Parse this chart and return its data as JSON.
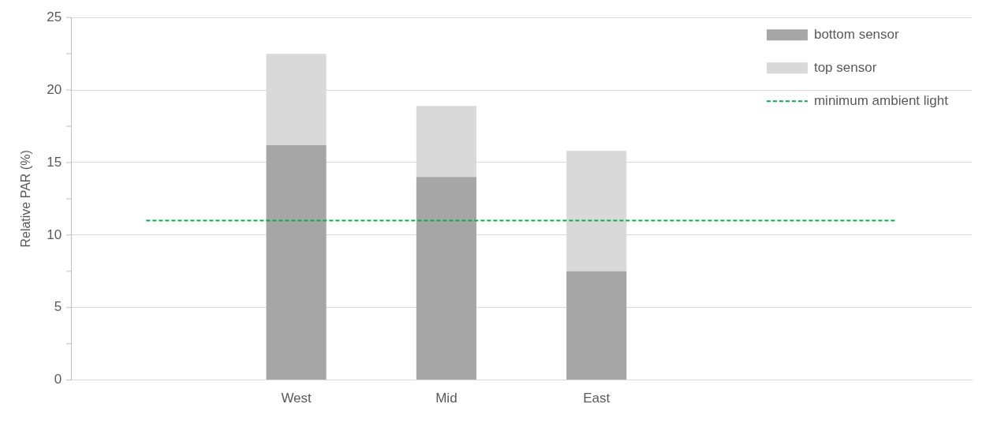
{
  "chart_data": {
    "type": "bar",
    "ylabel": "Relative PAR (%)",
    "categories": [
      null,
      "West",
      "Mid",
      "East",
      null,
      null
    ],
    "stacked": true,
    "series": [
      {
        "name": "bottom sensor",
        "color": "#a6a6a6",
        "values": [
          null,
          16.2,
          14.0,
          7.5,
          null,
          null
        ]
      },
      {
        "name": "top sensor",
        "color": "#d9d9d9",
        "values": [
          null,
          6.3,
          4.9,
          8.3,
          null,
          null
        ]
      },
      {
        "name": "minimum ambient light",
        "type": "line",
        "color": "#00b050",
        "line_style": "dashed",
        "marker": "none",
        "values": [
          11,
          11,
          11,
          11,
          11,
          11
        ]
      }
    ],
    "ylim": [
      0,
      25
    ],
    "yticks": [
      0,
      {
        "value": 2.5,
        "label": null
      },
      5,
      {
        "value": 7.5,
        "label": null
      },
      10,
      {
        "value": 12.5,
        "label": null
      },
      15,
      {
        "value": 17.5,
        "label": null
      },
      20,
      {
        "value": 22.5,
        "label": null
      },
      25
    ],
    "grid": "y",
    "legend": "top right"
  }
}
